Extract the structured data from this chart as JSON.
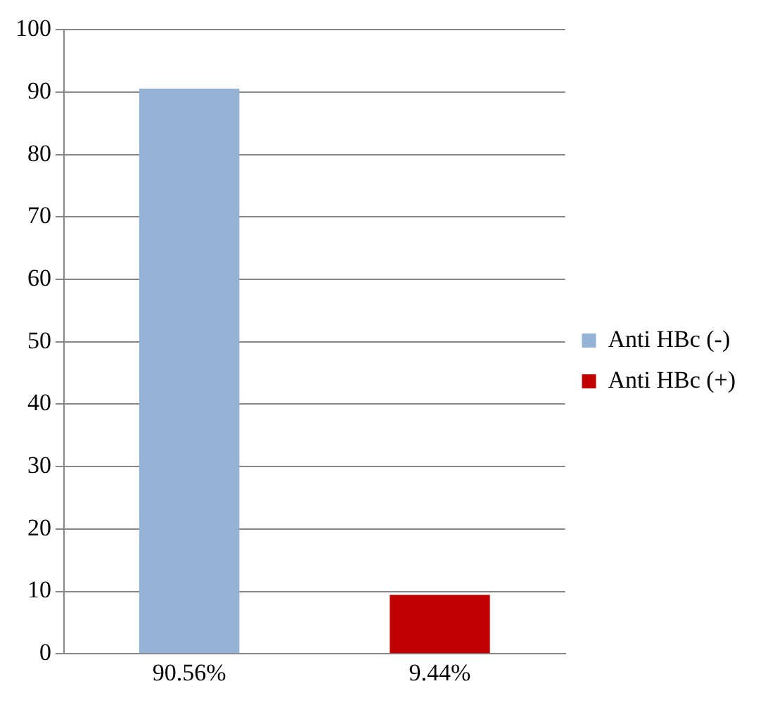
{
  "chart_data": {
    "type": "bar",
    "categories": [
      "90.56%",
      "9.44%"
    ],
    "series": [
      {
        "name": "Anti HBc (-)",
        "color": "#95b3d7",
        "values": [
          90.56,
          null
        ]
      },
      {
        "name": "Anti HBc (+)",
        "color": "#c00000",
        "values": [
          null,
          9.44
        ]
      }
    ],
    "ylim": [
      0,
      100
    ],
    "yticks": [
      0,
      10,
      20,
      30,
      40,
      50,
      60,
      70,
      80,
      90,
      100
    ],
    "grid": "y",
    "legend": "right"
  }
}
